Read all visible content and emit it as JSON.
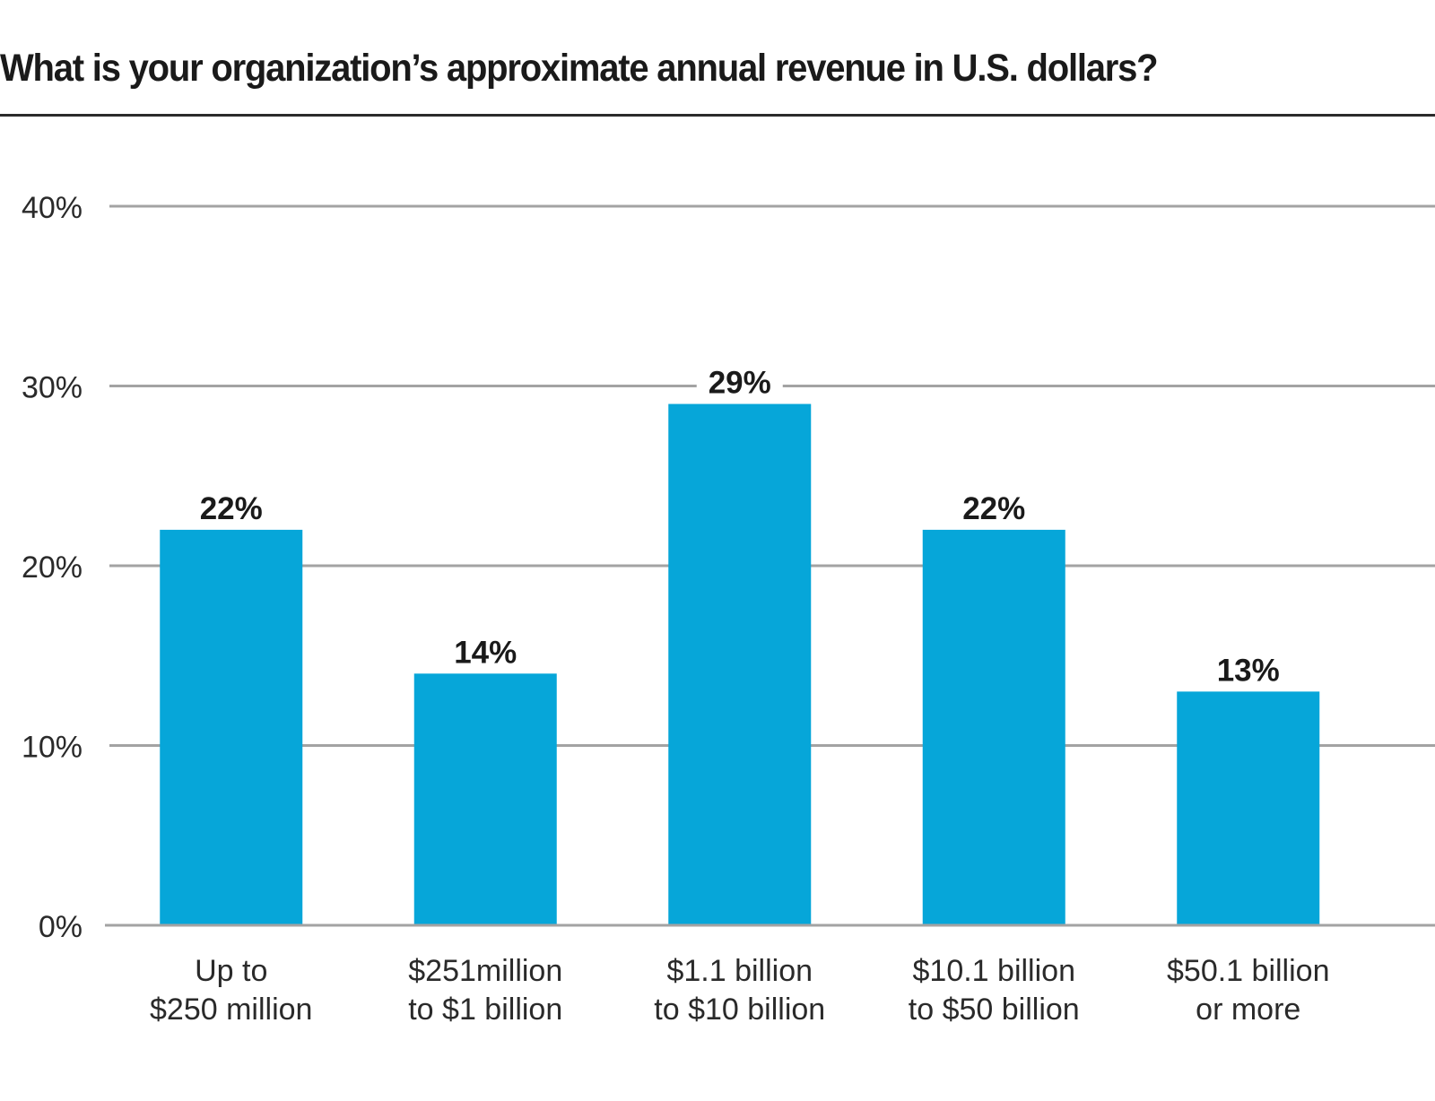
{
  "title": "What is your organization’s approximate annual revenue in U.S. dollars?",
  "colors": {
    "bar": "#06A6D9",
    "grid": "#A3A3A3",
    "text": "#1a1a1a"
  },
  "chart_data": {
    "type": "bar",
    "title": "What is your organization’s approximate annual revenue in U.S. dollars?",
    "xlabel": "",
    "ylabel": "",
    "categories": [
      [
        "Up to",
        "$250 million"
      ],
      [
        "$251million",
        "to $1 billion"
      ],
      [
        "$1.1 billion",
        "to $10 billion"
      ],
      [
        "$10.1 billion",
        "to $50 billion"
      ],
      [
        "$50.1 billion",
        "or more"
      ]
    ],
    "values": [
      22,
      14,
      29,
      22,
      13
    ],
    "value_labels": [
      "22%",
      "14%",
      "29%",
      "22%",
      "13%"
    ],
    "ylim": [
      0,
      40
    ],
    "yticks": [
      0,
      10,
      20,
      30,
      40
    ],
    "ytick_labels": [
      "0%",
      "10%",
      "20%",
      "30%",
      "40%"
    ],
    "grid": true,
    "legend": "none"
  }
}
